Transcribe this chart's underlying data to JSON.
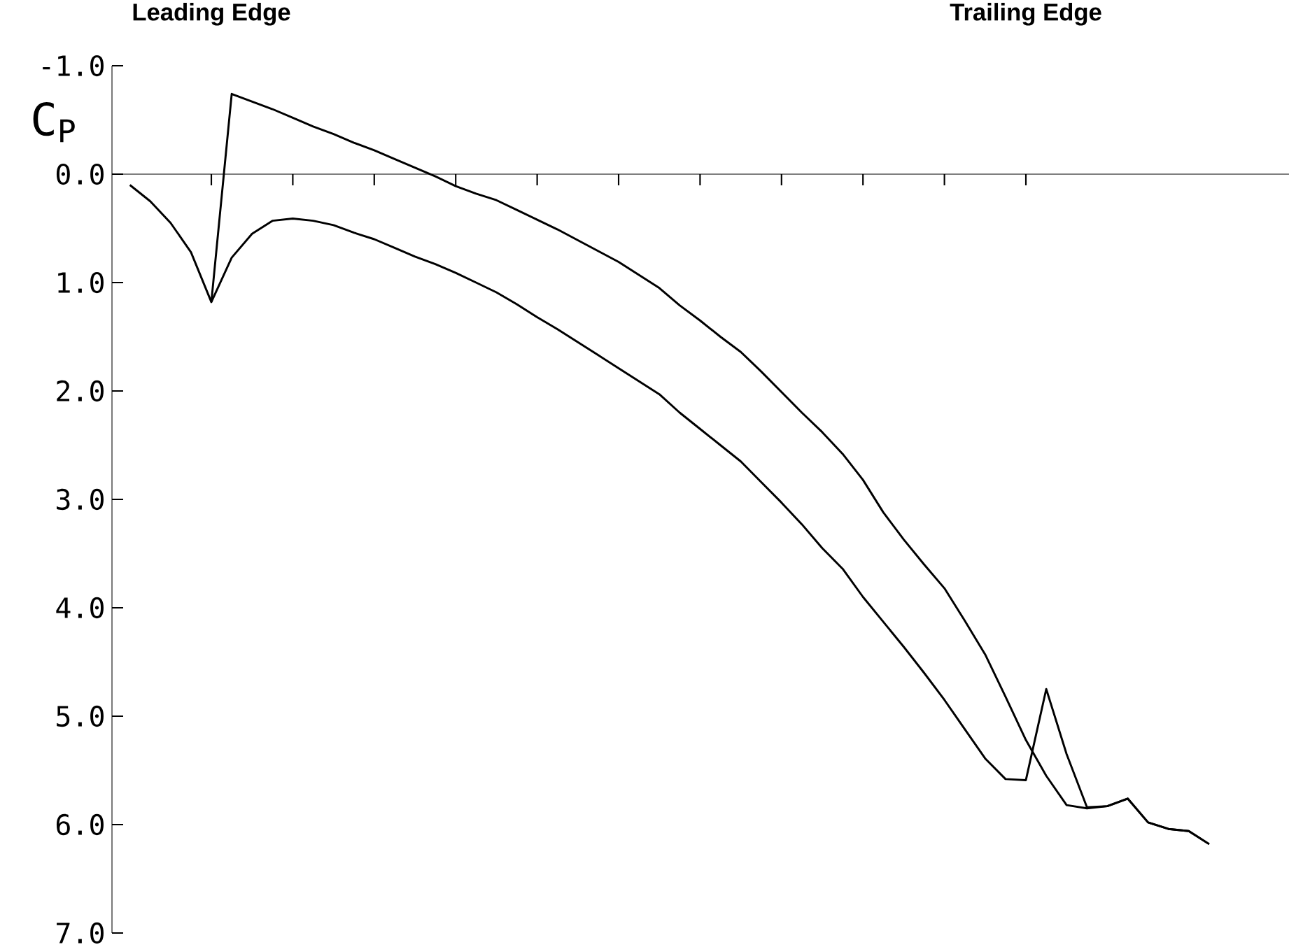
{
  "chart_data": {
    "type": "line",
    "ylabel": "C$_{P}$",
    "annotations": [
      "Leading Edge",
      "Trailing Edge"
    ],
    "categories": [
      null,
      null,
      null,
      null,
      null,
      null,
      null,
      null,
      null,
      null,
      null,
      null,
      null,
      null,
      null,
      null,
      null,
      null,
      null,
      null,
      null,
      null,
      null,
      null,
      null,
      null,
      null,
      null,
      null,
      null,
      null,
      null,
      null,
      null,
      null,
      null,
      null,
      null,
      null,
      null,
      null,
      null,
      null,
      null,
      null,
      null,
      null,
      null,
      null,
      null,
      null,
      null,
      null,
      null
    ],
    "series": [
      {
        "color": "#000000",
        "values": [
          0.1,
          0.25,
          0.45,
          0.72,
          1.18,
          0.77,
          0.55,
          0.43,
          0.41,
          0.43,
          0.47,
          0.54,
          0.6,
          0.68,
          0.76,
          0.83,
          0.91,
          1.0,
          1.09,
          1.2,
          1.32,
          1.43,
          1.55,
          1.67,
          1.79,
          1.91,
          2.03,
          2.2,
          2.35,
          2.5,
          2.65,
          2.84,
          3.03,
          3.23,
          3.45,
          3.64,
          3.9,
          4.13,
          4.36,
          4.6,
          4.85,
          5.12,
          5.39,
          5.58,
          5.59,
          4.75,
          5.35,
          5.84,
          5.83,
          5.76,
          5.98,
          6.04,
          6.06,
          6.18
        ]
      },
      {
        "color": "#000000",
        "values": [
          null,
          null,
          null,
          null,
          1.18,
          -0.74,
          -0.67,
          -0.6,
          -0.52,
          -0.44,
          -0.37,
          -0.29,
          -0.22,
          -0.14,
          -0.06,
          0.02,
          0.11,
          0.18,
          0.24,
          0.33,
          0.42,
          0.51,
          0.61,
          0.71,
          0.81,
          0.93,
          1.05,
          1.21,
          1.35,
          1.5,
          1.64,
          1.82,
          2.01,
          2.2,
          2.38,
          2.58,
          2.82,
          3.12,
          3.37,
          3.6,
          3.82,
          4.12,
          4.43,
          4.82,
          5.22,
          5.55,
          5.82,
          5.85,
          5.83,
          5.76,
          5.98,
          6.04,
          6.06,
          6.18
        ]
      }
    ],
    "ylim": [
      7.0,
      -1.0
    ],
    "yticks": [
      {
        "value": -1.0,
        "label": "-1.0"
      },
      {
        "value": 0.0,
        "label": "0.0"
      },
      {
        "value": 1.0,
        "label": "1.0"
      },
      {
        "value": 2.0,
        "label": "2.0"
      },
      {
        "value": 3.0,
        "label": "3.0"
      },
      {
        "value": 4.0,
        "label": "4.0"
      },
      {
        "value": 5.0,
        "label": "5.0"
      },
      {
        "value": 6.0,
        "label": "6.0"
      },
      {
        "value": 7.0,
        "label": "7.0"
      }
    ],
    "tick_labels": "y",
    "marker": "none",
    "line_style": "solid"
  }
}
